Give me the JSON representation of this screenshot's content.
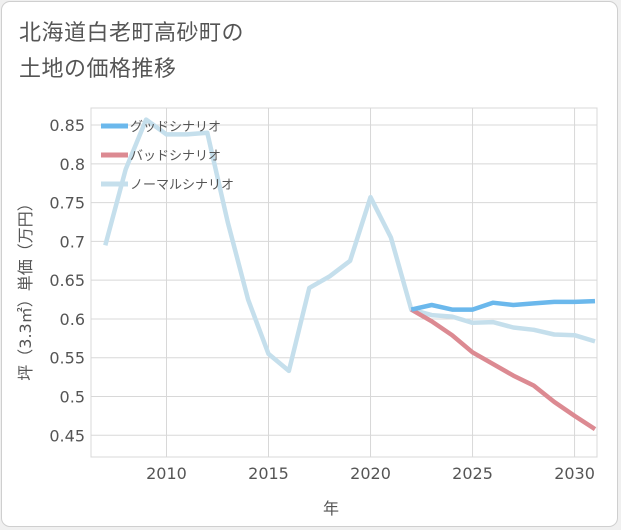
{
  "title_lines": [
    "北海道白老町高砂町の",
    "土地の価格推移"
  ],
  "chart_data": {
    "type": "line",
    "xlabel": "年",
    "ylabel": "坪（3.3㎡）単価（万円）",
    "xlim": [
      2006.3,
      2031.1
    ],
    "ylim": [
      0.422,
      0.872
    ],
    "xticks": [
      2010,
      2015,
      2020,
      2025,
      2030
    ],
    "yticks": [
      0.45,
      0.5,
      0.55,
      0.6,
      0.65,
      0.7,
      0.75,
      0.8,
      0.85
    ],
    "ytick_labels": [
      "0.45",
      "0.5",
      "0.55",
      "0.6",
      "0.65",
      "0.7",
      "0.75",
      "0.8",
      "0.85"
    ],
    "grid": true,
    "legend_position": "top-left",
    "series": [
      {
        "name": "グッドシナリオ",
        "color": "#6bb8ec",
        "x": [
          2022,
          2023,
          2024,
          2025,
          2026,
          2027,
          2028,
          2029,
          2030,
          2031
        ],
        "y": [
          0.612,
          0.618,
          0.612,
          0.612,
          0.621,
          0.618,
          0.62,
          0.622,
          0.622,
          0.623
        ]
      },
      {
        "name": "バッドシナリオ",
        "color": "#dc8a92",
        "x": [
          2022,
          2023,
          2024,
          2025,
          2026,
          2027,
          2028,
          2029,
          2030,
          2031
        ],
        "y": [
          0.612,
          0.597,
          0.579,
          0.557,
          0.542,
          0.527,
          0.514,
          0.493,
          0.475,
          0.458
        ]
      },
      {
        "name": "ノーマルシナリオ",
        "color": "#c5dfec",
        "x": [
          2007,
          2008,
          2009,
          2010,
          2011,
          2012,
          2013,
          2014,
          2015,
          2016,
          2017,
          2018,
          2019,
          2020,
          2021,
          2022,
          2023,
          2024,
          2025,
          2026,
          2027,
          2028,
          2029,
          2030,
          2031
        ],
        "y": [
          0.695,
          0.793,
          0.857,
          0.838,
          0.838,
          0.84,
          0.725,
          0.625,
          0.555,
          0.533,
          0.64,
          0.655,
          0.675,
          0.757,
          0.705,
          0.612,
          0.605,
          0.603,
          0.595,
          0.596,
          0.589,
          0.586,
          0.58,
          0.579,
          0.571
        ]
      }
    ]
  }
}
